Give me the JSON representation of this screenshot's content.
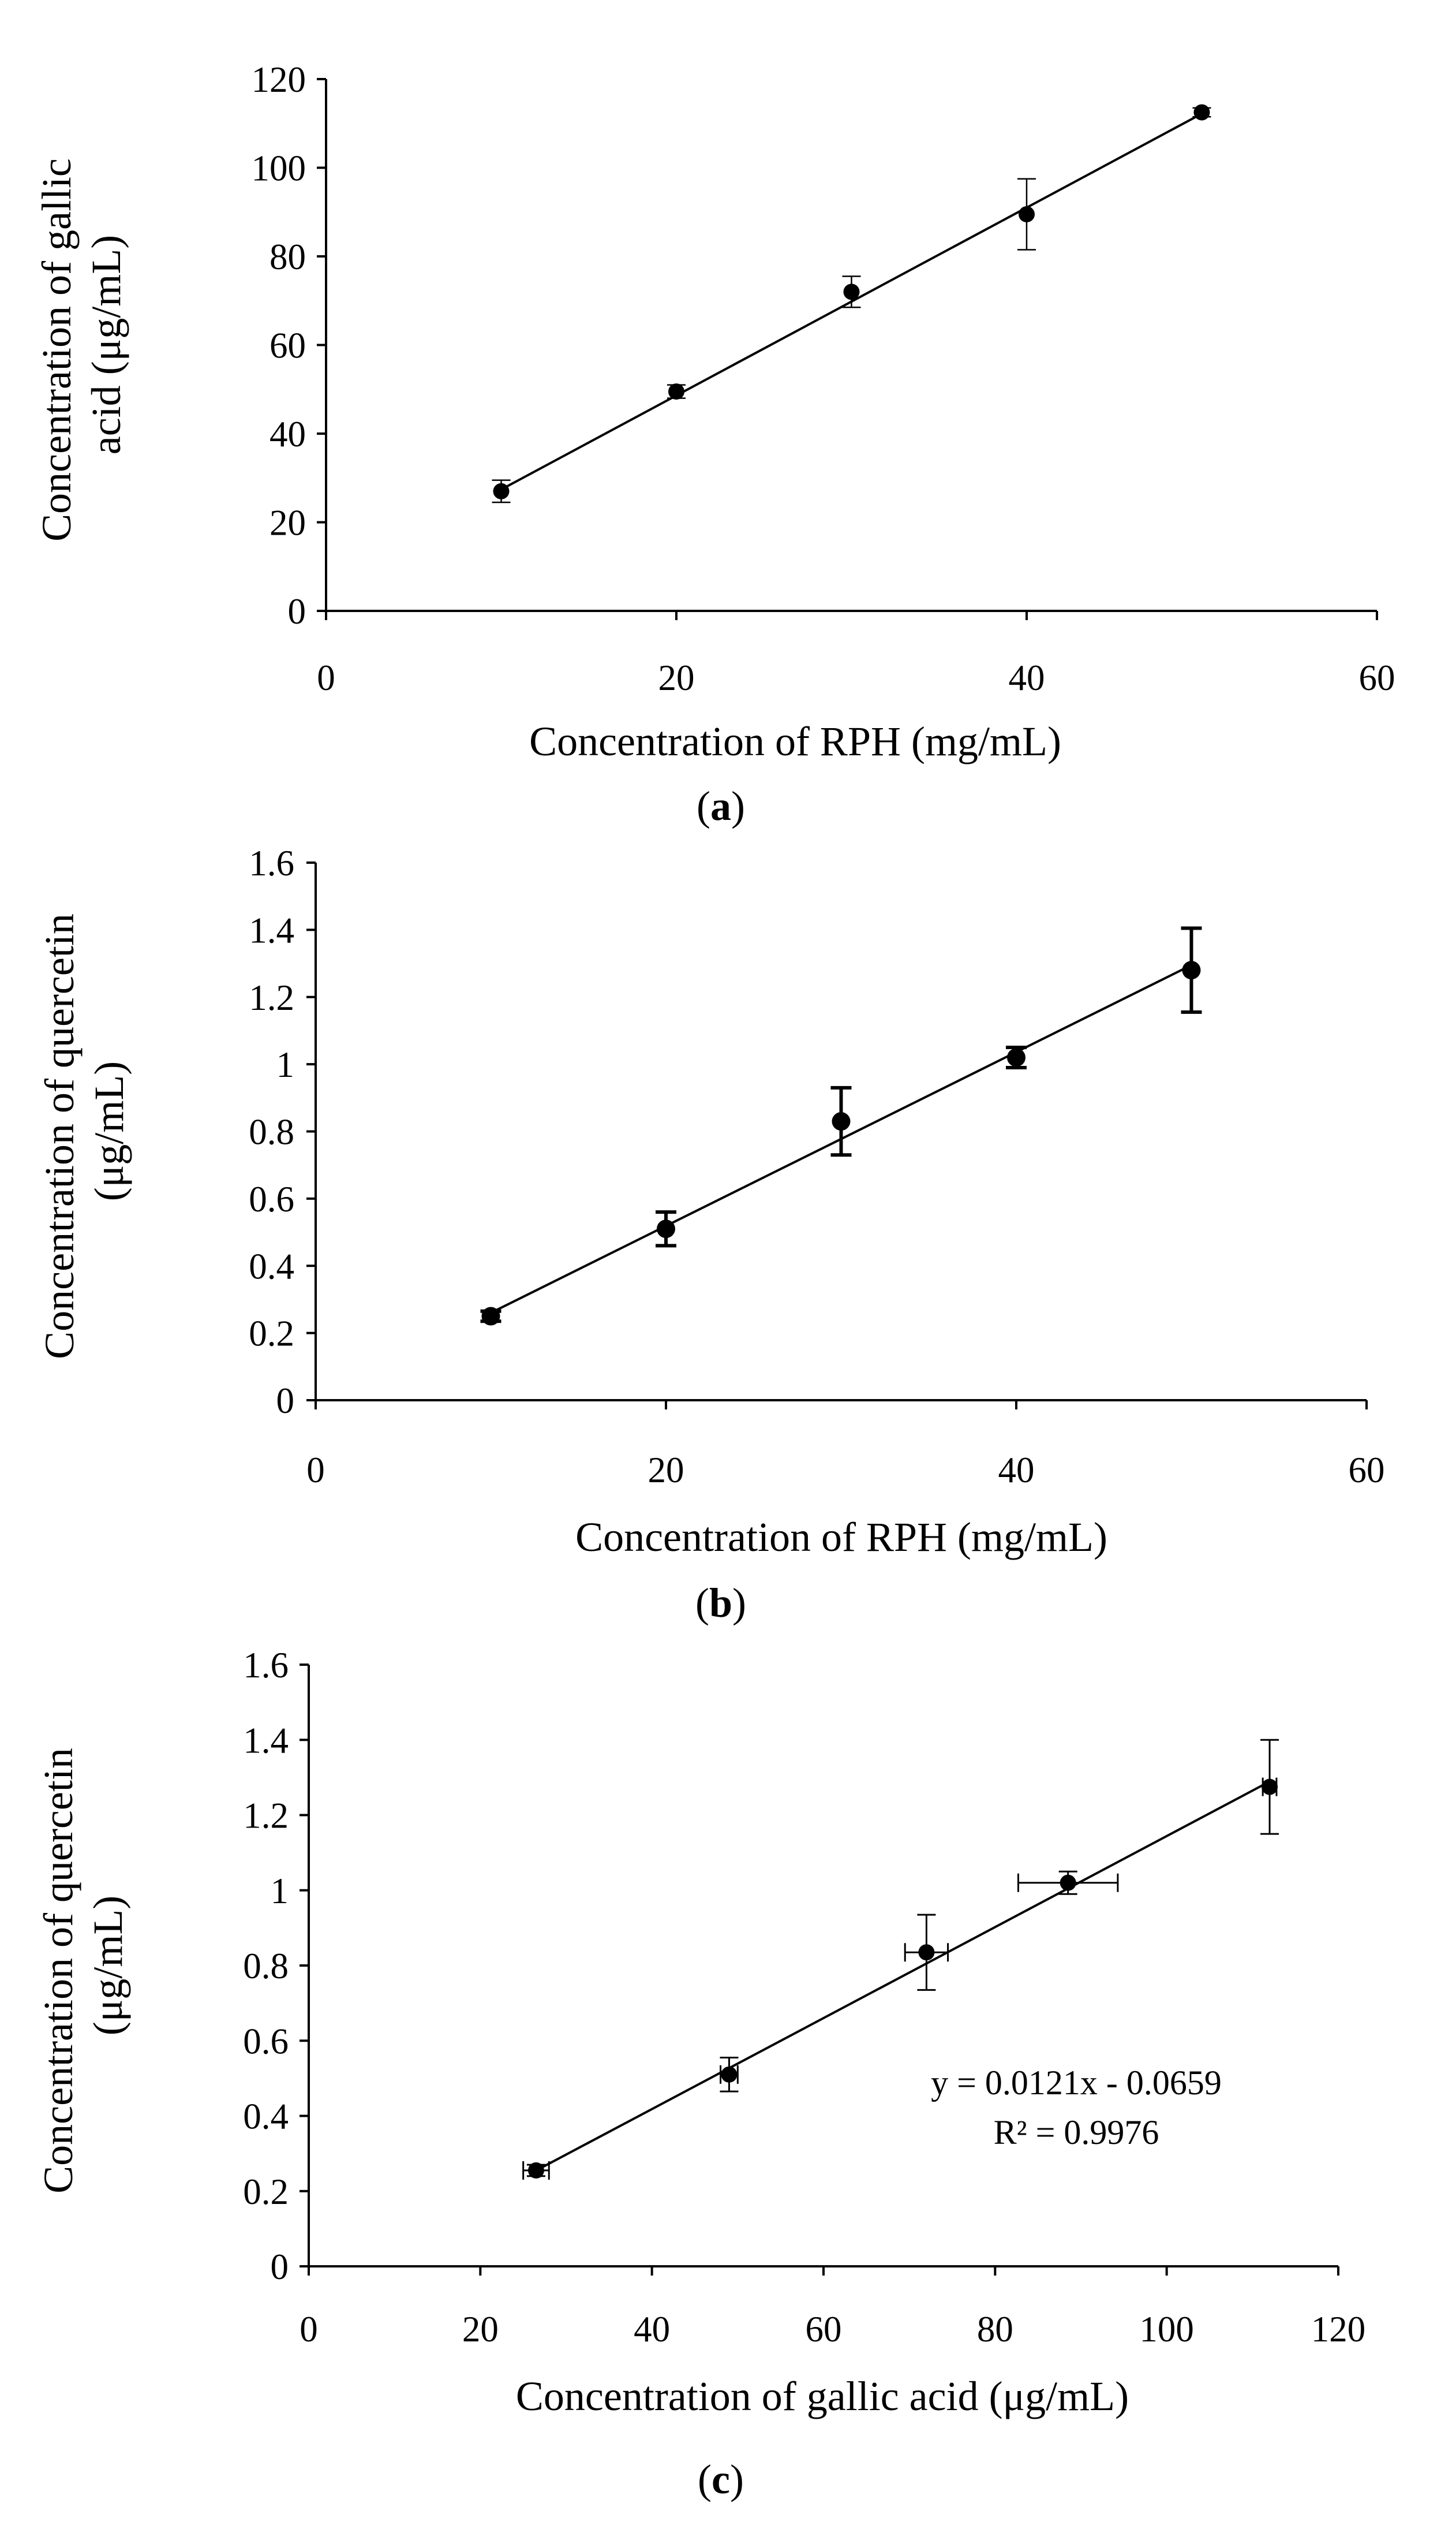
{
  "chart_data": [
    {
      "type": "scatter",
      "panel": "a",
      "x": [
        10,
        20,
        30,
        40,
        50
      ],
      "y": [
        27.0,
        49.5,
        72.0,
        89.5,
        112.5
      ],
      "y_err": [
        2.5,
        1.5,
        3.5,
        8.0,
        1.0
      ],
      "x_err": null,
      "trendline": {
        "x0": 10,
        "y0": 27.4,
        "x1": 50,
        "y1": 112.2
      },
      "xlabel": "Concentration of RPH (mg/mL)",
      "ylabel_lines": [
        "Concentration of gallic",
        "acid (μg/mL)"
      ],
      "xlim": [
        0,
        60
      ],
      "ylim": [
        0,
        120
      ],
      "x_ticks": [
        "0",
        "20",
        "40",
        "60"
      ],
      "y_ticks": [
        "0",
        "20",
        "40",
        "60",
        "80",
        "100",
        "120"
      ],
      "label": "(a)",
      "label_letter": "a"
    },
    {
      "type": "scatter",
      "panel": "b",
      "x": [
        10,
        20,
        30,
        40,
        50
      ],
      "y": [
        0.25,
        0.51,
        0.83,
        1.02,
        1.28
      ],
      "y_err": [
        0.015,
        0.05,
        0.1,
        0.03,
        0.125
      ],
      "x_err": null,
      "trendline": {
        "x0": 10,
        "y0": 0.26,
        "x1": 50,
        "y1": 1.295
      },
      "xlabel": "Concentration of RPH (mg/mL)",
      "ylabel_lines": [
        "Concentration of quercetin",
        "(μg/mL)"
      ],
      "xlim": [
        0,
        60
      ],
      "ylim": [
        0,
        1.6
      ],
      "x_ticks": [
        "0",
        "20",
        "40",
        "60"
      ],
      "y_ticks": [
        "0",
        "0.2",
        "0.4",
        "0.6",
        "0.8",
        "1",
        "1.2",
        "1.4",
        "1.6"
      ],
      "label": "(b)",
      "label_letter": "b"
    },
    {
      "type": "scatter",
      "panel": "c",
      "x": [
        26.5,
        49.0,
        72.0,
        88.5,
        112.0
      ],
      "y": [
        0.255,
        0.51,
        0.835,
        1.02,
        1.275
      ],
      "y_err": [
        0.015,
        0.045,
        0.1,
        0.03,
        0.125
      ],
      "x_err": [
        1.5,
        1.0,
        2.5,
        5.8,
        0.8
      ],
      "trendline": {
        "x0": 26.5,
        "y0": 0.2548,
        "x1": 112.0,
        "y1": 1.2893
      },
      "xlabel": "Concentration of gallic acid (μg/mL)",
      "ylabel_lines": [
        "Concentration of quercetin",
        "(μg/mL)"
      ],
      "xlim": [
        0,
        120
      ],
      "ylim": [
        0,
        1.6
      ],
      "x_ticks": [
        "0",
        "20",
        "40",
        "60",
        "80",
        "100",
        "120"
      ],
      "y_ticks": [
        "0",
        "0.2",
        "0.4",
        "0.6",
        "0.8",
        "1",
        "1.2",
        "1.4",
        "1.6"
      ],
      "equation": "y = 0.0121x - 0.0659",
      "r_squared": "R² = 0.9976",
      "label": "(c)",
      "label_letter": "c"
    }
  ]
}
